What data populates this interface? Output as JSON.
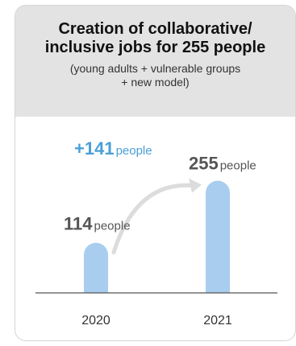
{
  "header": {
    "title_line1": "Creation of collaborative/",
    "title_line2": "inclusive jobs for 255 people",
    "subtitle_line1": "(young adults + vulnerable groups",
    "subtitle_line2": "+ new model)"
  },
  "colors": {
    "header_bg": "#e3e3e3",
    "bar": "#a9cdee",
    "arrow": "#dcdcdc",
    "increase": "#4a9fd8",
    "value_text": "#555555",
    "axis": "#555555"
  },
  "chart_data": {
    "type": "bar",
    "title": "Creation of collaborative/ inclusive jobs for 255 people",
    "subtitle": "(young adults + vulnerable groups + new model)",
    "categories": [
      "2020",
      "2021"
    ],
    "values": [
      114,
      255
    ],
    "value_labels": [
      {
        "number": "114",
        "unit": "people"
      },
      {
        "number": "255",
        "unit": "people"
      }
    ],
    "annotation": {
      "number": "+141",
      "unit": "people"
    },
    "xlabel": "",
    "ylabel": "",
    "ylim": [
      0,
      300
    ],
    "grid": false,
    "legend": "none"
  }
}
